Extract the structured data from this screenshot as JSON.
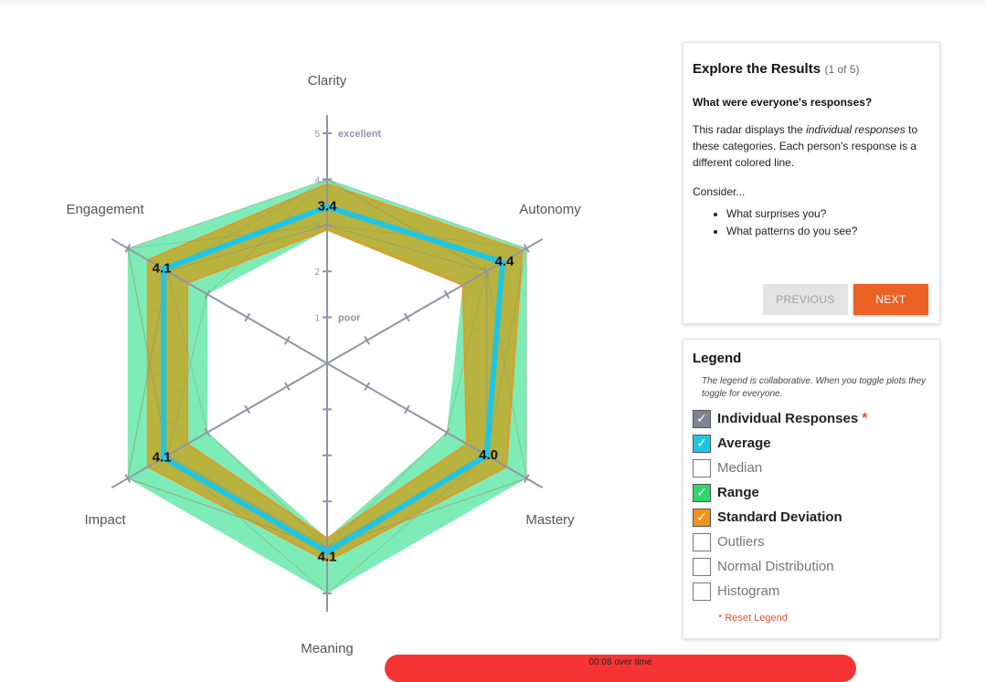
{
  "chart_data": {
    "type": "radar",
    "axes": [
      "Clarity",
      "Autonomy",
      "Mastery",
      "Meaning",
      "Impact",
      "Engagement"
    ],
    "scale": {
      "min": 0,
      "max": 5,
      "ticks": [
        1,
        2,
        3,
        4,
        5
      ],
      "tick_labels": {
        "1": "poor",
        "5": "excellent"
      }
    },
    "series": [
      {
        "name": "Average",
        "values": [
          3.4,
          4.4,
          4.0,
          4.1,
          4.1,
          4.1
        ],
        "labels": [
          "3.4",
          "4.4",
          "4.0",
          "4.1",
          "4.1",
          "4.1"
        ]
      },
      {
        "name": "Range",
        "min": [
          2.9,
          3.4,
          3.0,
          3.8,
          3.0,
          3.0
        ],
        "max": [
          4.0,
          5.0,
          5.0,
          5.0,
          5.0,
          5.0
        ]
      },
      {
        "name": "Standard Deviation",
        "low": [
          2.9,
          3.4,
          3.5,
          3.8,
          3.5,
          3.5
        ],
        "high": [
          3.9,
          4.9,
          4.5,
          4.3,
          4.5,
          4.5
        ]
      }
    ],
    "individual_responses": [
      [
        4,
        5,
        5,
        4,
        4,
        5
      ],
      [
        3,
        4,
        3,
        4,
        5,
        4
      ],
      [
        4,
        4,
        4,
        5,
        4,
        3
      ],
      [
        3,
        5,
        4,
        4,
        4,
        5
      ],
      [
        4,
        4,
        4,
        4,
        3,
        4
      ],
      [
        3,
        4,
        5,
        4,
        5,
        4
      ]
    ]
  },
  "explore": {
    "title": "Explore the Results",
    "count": "(1 of 5)",
    "question": "What were everyone's responses?",
    "body_1": "This radar displays the ",
    "body_em": "individual responses",
    "body_2": " to these categories. Each person's response is a different colored line.",
    "consider": "Consider...",
    "bullets": [
      "What surprises you?",
      "What patterns do you see?"
    ],
    "prev_label": "PREVIOUS",
    "next_label": "NEXT"
  },
  "legend": {
    "title": "Legend",
    "note": "The legend is collaborative. When you toggle plots they toggle for everyone.",
    "items": [
      {
        "label": "Individual Responses",
        "checked": true,
        "color": "#7f8396",
        "required": true
      },
      {
        "label": "Average",
        "checked": true,
        "color": "#1ec6e6"
      },
      {
        "label": "Median",
        "checked": false,
        "color": "#ffffff"
      },
      {
        "label": "Range",
        "checked": true,
        "color": "#2fd46e"
      },
      {
        "label": "Standard Deviation",
        "checked": true,
        "color": "#f1921b"
      },
      {
        "label": "Outliers",
        "checked": false,
        "color": "#ffffff"
      },
      {
        "label": "Normal Distribution",
        "checked": false,
        "color": "#ffffff"
      },
      {
        "label": "Histogram",
        "checked": false,
        "color": "#ffffff"
      }
    ],
    "required_mark": "*",
    "reset_label": "* Reset Legend"
  },
  "timer": {
    "text": "00:08 over time"
  },
  "colors": {
    "range_fill": "#2fe08a",
    "sd_fill": "#c2a82a",
    "sd_edge": "#f1921b",
    "average": "#1ec6e6",
    "axis": "#8f96a8",
    "next": "#ec6124",
    "timer": "#f73333"
  }
}
